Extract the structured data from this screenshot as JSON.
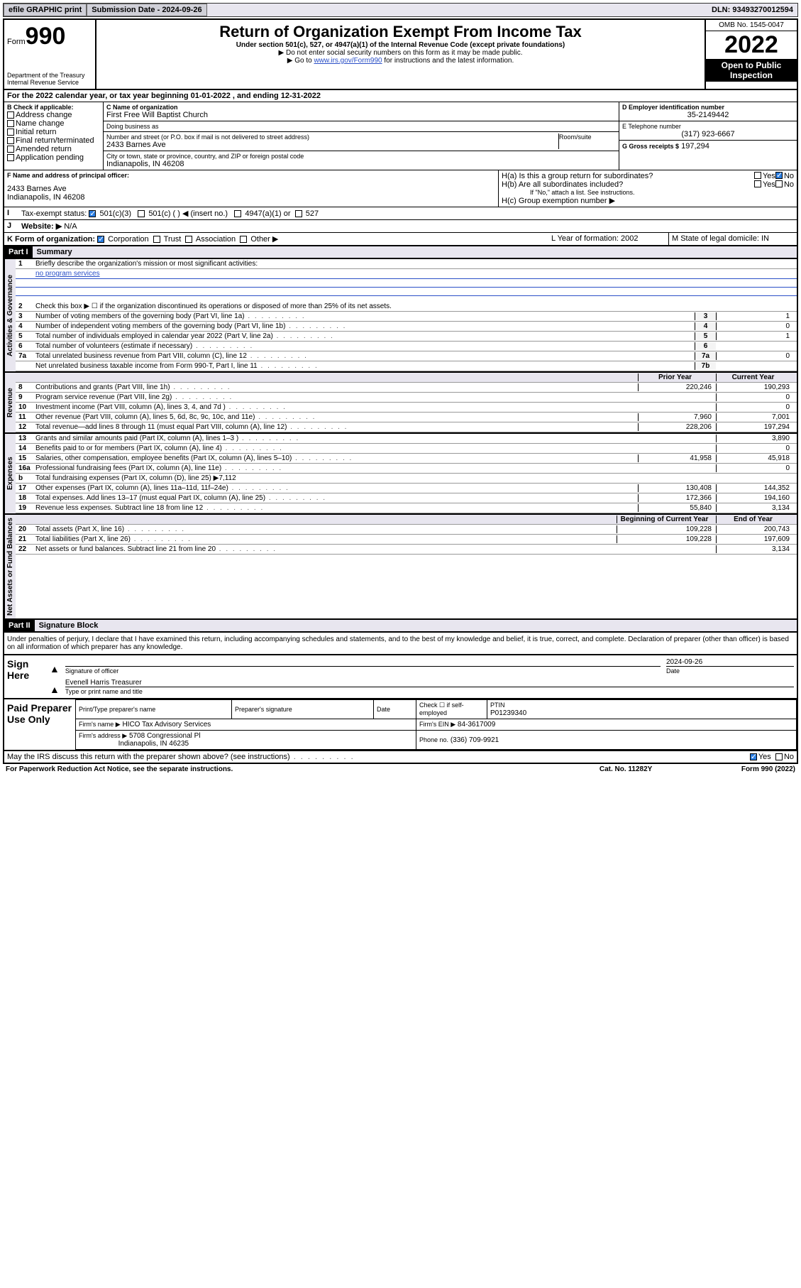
{
  "topbar": {
    "efile": "efile GRAPHIC print",
    "submission_label": "Submission Date - 2024-09-26",
    "dln": "DLN: 93493270012594"
  },
  "header": {
    "form_word": "Form",
    "form_no": "990",
    "dept": "Department of the Treasury Internal Revenue Service",
    "title": "Return of Organization Exempt From Income Tax",
    "sub": "Under section 501(c), 527, or 4947(a)(1) of the Internal Revenue Code (except private foundations)",
    "instr1": "▶ Do not enter social security numbers on this form as it may be made public.",
    "instr2_pre": "▶ Go to ",
    "instr2_link": "www.irs.gov/Form990",
    "instr2_post": " for instructions and the latest information.",
    "omb": "OMB No. 1545-0047",
    "year": "2022",
    "open": "Open to Public Inspection"
  },
  "A": {
    "text": "For the 2022 calendar year, or tax year beginning 01-01-2022    , and ending 12-31-2022"
  },
  "B": {
    "label": "B Check if applicable:",
    "opts": [
      "Address change",
      "Name change",
      "Initial return",
      "Final return/terminated",
      "Amended return",
      "Application pending"
    ]
  },
  "C": {
    "name_label": "C Name of organization",
    "name": "First Free Will Baptist Church",
    "dba_label": "Doing business as",
    "addr_label": "Number and street (or P.O. box if mail is not delivered to street address)",
    "room_label": "Room/suite",
    "addr": "2433 Barnes Ave",
    "city_label": "City or town, state or province, country, and ZIP or foreign postal code",
    "city": "Indianapolis, IN  46208"
  },
  "D": {
    "label": "D Employer identification number",
    "val": "35-2149442"
  },
  "E": {
    "label": "E Telephone number",
    "val": "(317) 923-6667"
  },
  "G": {
    "label": "G Gross receipts $",
    "val": "197,294"
  },
  "F": {
    "label": "F Name and address of principal officer:",
    "addr1": "2433 Barnes Ave",
    "addr2": "Indianapolis, IN  46208"
  },
  "H": {
    "a": "H(a)  Is this a group return for subordinates?",
    "b": "H(b)  Are all subordinates included?",
    "note": "If \"No,\" attach a list. See instructions.",
    "c": "H(c)  Group exemption number ▶",
    "yes": "Yes",
    "no": "No"
  },
  "I": {
    "label": "Tax-exempt status:",
    "o1": "501(c)(3)",
    "o2": "501(c) (   ) ◀ (insert no.)",
    "o3": "4947(a)(1) or",
    "o4": "527"
  },
  "J": {
    "label": "Website: ▶",
    "val": "N/A"
  },
  "K": {
    "label": "K Form of organization:",
    "o1": "Corporation",
    "o2": "Trust",
    "o3": "Association",
    "o4": "Other ▶"
  },
  "L": {
    "label": "L Year of formation: 2002"
  },
  "M": {
    "label": "M State of legal domicile: IN"
  },
  "part1": {
    "hdr": "Part I",
    "title": "Summary",
    "l1": "Briefly describe the organization's mission or most significant activities:",
    "l1v": "no program services",
    "l2": "Check this box ▶ ☐  if the organization discontinued its operations or disposed of more than 25% of its net assets.",
    "rows_gov": [
      {
        "n": "3",
        "d": "Number of voting members of the governing body (Part VI, line 1a)",
        "box": "3",
        "v": "1"
      },
      {
        "n": "4",
        "d": "Number of independent voting members of the governing body (Part VI, line 1b)",
        "box": "4",
        "v": "0"
      },
      {
        "n": "5",
        "d": "Total number of individuals employed in calendar year 2022 (Part V, line 2a)",
        "box": "5",
        "v": "1"
      },
      {
        "n": "6",
        "d": "Total number of volunteers (estimate if necessary)",
        "box": "6",
        "v": ""
      },
      {
        "n": "7a",
        "d": "Total unrelated business revenue from Part VIII, column (C), line 12",
        "box": "7a",
        "v": "0"
      },
      {
        "n": "",
        "d": "Net unrelated business taxable income from Form 990-T, Part I, line 11",
        "box": "7b",
        "v": ""
      }
    ],
    "col_prior": "Prior Year",
    "col_curr": "Current Year",
    "rev": [
      {
        "n": "8",
        "d": "Contributions and grants (Part VIII, line 1h)",
        "p": "220,246",
        "c": "190,293"
      },
      {
        "n": "9",
        "d": "Program service revenue (Part VIII, line 2g)",
        "p": "",
        "c": "0"
      },
      {
        "n": "10",
        "d": "Investment income (Part VIII, column (A), lines 3, 4, and 7d )",
        "p": "",
        "c": "0"
      },
      {
        "n": "11",
        "d": "Other revenue (Part VIII, column (A), lines 5, 6d, 8c, 9c, 10c, and 11e)",
        "p": "7,960",
        "c": "7,001"
      },
      {
        "n": "12",
        "d": "Total revenue—add lines 8 through 11 (must equal Part VIII, column (A), line 12)",
        "p": "228,206",
        "c": "197,294"
      }
    ],
    "exp": [
      {
        "n": "13",
        "d": "Grants and similar amounts paid (Part IX, column (A), lines 1–3 )",
        "p": "",
        "c": "3,890"
      },
      {
        "n": "14",
        "d": "Benefits paid to or for members (Part IX, column (A), line 4)",
        "p": "",
        "c": "0"
      },
      {
        "n": "15",
        "d": "Salaries, other compensation, employee benefits (Part IX, column (A), lines 5–10)",
        "p": "41,958",
        "c": "45,918"
      },
      {
        "n": "16a",
        "d": "Professional fundraising fees (Part IX, column (A), line 11e)",
        "p": "",
        "c": "0"
      },
      {
        "n": "b",
        "d": "Total fundraising expenses (Part IX, column (D), line 25) ▶7,112",
        "p": "-",
        "c": "-"
      },
      {
        "n": "17",
        "d": "Other expenses (Part IX, column (A), lines 11a–11d, 11f–24e)",
        "p": "130,408",
        "c": "144,352"
      },
      {
        "n": "18",
        "d": "Total expenses. Add lines 13–17 (must equal Part IX, column (A), line 25)",
        "p": "172,366",
        "c": "194,160"
      },
      {
        "n": "19",
        "d": "Revenue less expenses. Subtract line 18 from line 12",
        "p": "55,840",
        "c": "3,134"
      }
    ],
    "col_beg": "Beginning of Current Year",
    "col_end": "End of Year",
    "net": [
      {
        "n": "20",
        "d": "Total assets (Part X, line 16)",
        "p": "109,228",
        "c": "200,743"
      },
      {
        "n": "21",
        "d": "Total liabilities (Part X, line 26)",
        "p": "109,228",
        "c": "197,609"
      },
      {
        "n": "22",
        "d": "Net assets or fund balances. Subtract line 21 from line 20",
        "p": "",
        "c": "3,134"
      }
    ],
    "tab_gov": "Activities & Governance",
    "tab_rev": "Revenue",
    "tab_exp": "Expenses",
    "tab_net": "Net Assets or Fund Balances"
  },
  "part2": {
    "hdr": "Part II",
    "title": "Signature Block",
    "decl": "Under penalties of perjury, I declare that I have examined this return, including accompanying schedules and statements, and to the best of my knowledge and belief, it is true, correct, and complete. Declaration of preparer (other than officer) is based on all information of which preparer has any knowledge.",
    "sign_here": "Sign Here",
    "sig_officer": "Signature of officer",
    "date": "Date",
    "date_v": "2024-09-26",
    "officer_name": "Evenell Harris  Treasurer",
    "type_name": "Type or print name and title",
    "paid": "Paid Preparer Use Only",
    "pt_name_l": "Print/Type preparer's name",
    "pt_sig_l": "Preparer's signature",
    "pt_date_l": "Date",
    "pt_check": "Check ☐ if self-employed",
    "ptin_l": "PTIN",
    "ptin": "P01239340",
    "firm_name_l": "Firm's name    ▶",
    "firm_name": "HICO Tax Advisory Services",
    "firm_ein_l": "Firm's EIN ▶",
    "firm_ein": "84-3617009",
    "firm_addr_l": "Firm's address ▶",
    "firm_addr1": "5708 Congressional Pl",
    "firm_addr2": "Indianapolis, IN  46235",
    "phone_l": "Phone no.",
    "phone": "(336) 709-9921",
    "may": "May the IRS discuss this return with the preparer shown above? (see instructions)",
    "yes": "Yes",
    "no": "No"
  },
  "footer": {
    "pra": "For Paperwork Reduction Act Notice, see the separate instructions.",
    "cat": "Cat. No. 11282Y",
    "form": "Form 990 (2022)"
  }
}
